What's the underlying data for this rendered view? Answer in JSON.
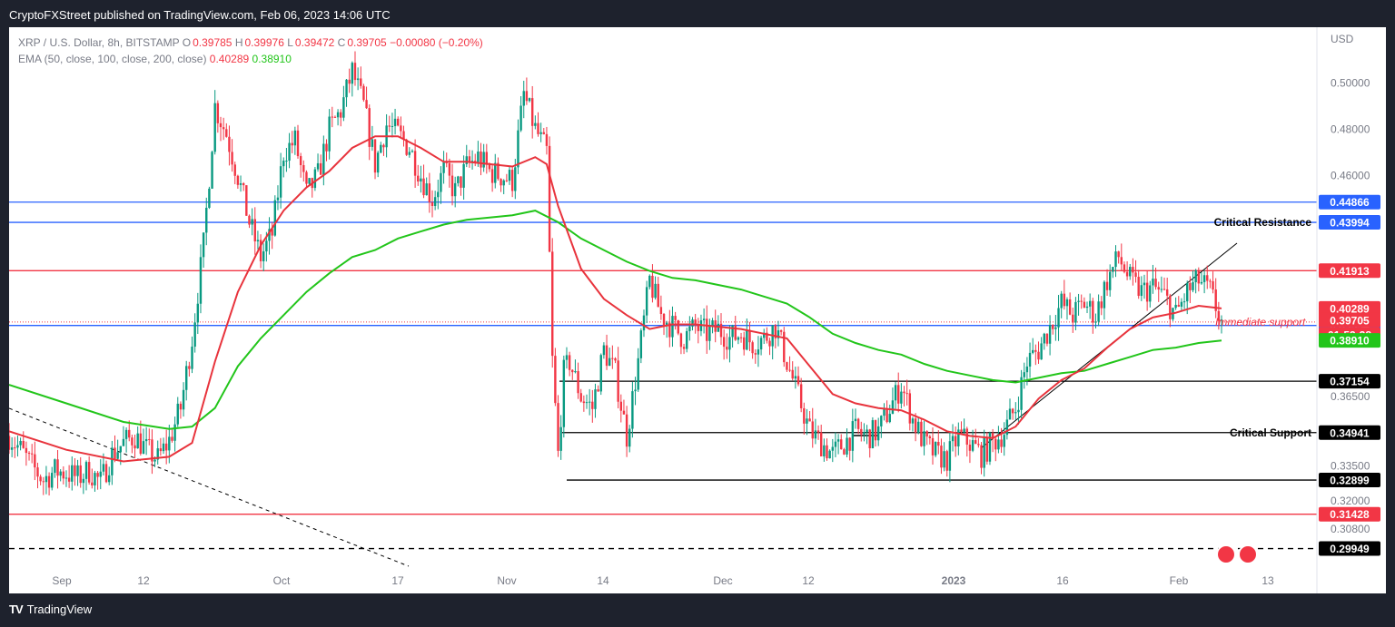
{
  "header": {
    "published": "CryptoFXStreet published on TradingView.com, Feb 06, 2023 14:06 UTC"
  },
  "footer": {
    "brand": "TradingView",
    "logo": "TV"
  },
  "legend": {
    "symbol": "XRP / U.S. Dollar, 8h, BITSTAMP",
    "o_label": "O",
    "o_value": "0.39785",
    "h_label": "H",
    "h_value": "0.39976",
    "l_label": "L",
    "l_value": "0.39472",
    "c_label": "C",
    "c_value": "0.39705",
    "change": "−0.00080 (−0.20%)",
    "ema_label": "EMA (50, close, 100, close, 200, close)",
    "ema_fast": "0.40289",
    "ema_slow": "0.38910"
  },
  "chart_data": {
    "type": "candlestick",
    "currency": "USD",
    "ylim": [
      0.2915,
      0.522
    ],
    "y_ticks": [
      "0.50000",
      "0.48000",
      "0.46000",
      "0.36500",
      "0.33500",
      "0.32000",
      "0.30800"
    ],
    "x_ticks": [
      "Sep",
      "12",
      "Oct",
      "17",
      "Nov",
      "14",
      "Dec",
      "12",
      "2023",
      "16",
      "Feb",
      "13"
    ],
    "horizontal_levels": [
      {
        "price": 0.44866,
        "label": "0.44866",
        "color": "#2962ff",
        "style": "solid",
        "annotation": ""
      },
      {
        "price": 0.43994,
        "label": "0.43994",
        "color": "#2962ff",
        "style": "solid",
        "annotation": "Critical Resistance"
      },
      {
        "price": 0.41913,
        "label": "0.41913",
        "color": "#f23645",
        "style": "solid",
        "annotation": ""
      },
      {
        "price": 0.39554,
        "label": "0.39554",
        "color": "#2962ff",
        "style": "solid",
        "annotation": ""
      },
      {
        "price": 0.37154,
        "label": "0.37154",
        "color": "#000000",
        "style": "solid",
        "annotation": ""
      },
      {
        "price": 0.34941,
        "label": "0.34941",
        "color": "#000000",
        "style": "solid",
        "annotation": "Critical Support"
      },
      {
        "price": 0.32899,
        "label": "0.32899",
        "color": "#000000",
        "style": "solid",
        "annotation": ""
      },
      {
        "price": 0.31428,
        "label": "0.31428",
        "color": "#f23645",
        "style": "solid",
        "annotation": ""
      },
      {
        "price": 0.29949,
        "label": "0.29949",
        "color": "#000000",
        "style": "dashed",
        "annotation": ""
      }
    ],
    "price_tags": [
      {
        "label": "0.40289",
        "price": 0.40289,
        "color": "#f23645"
      },
      {
        "label": "0.39705",
        "price": 0.39705,
        "color": "#f23645"
      },
      {
        "label": "01:53:28",
        "price": 0.39705,
        "color": "#f23645"
      },
      {
        "label": "0.38910",
        "price": 0.3891,
        "color": "#22c51a"
      }
    ],
    "annotations": [
      {
        "text": "Immediate support",
        "color": "#f23645"
      }
    ],
    "close_series": [
      [
        0,
        0.348
      ],
      [
        4,
        0.342
      ],
      [
        8,
        0.335
      ],
      [
        12,
        0.329
      ],
      [
        16,
        0.333
      ],
      [
        20,
        0.332
      ],
      [
        24,
        0.33
      ],
      [
        28,
        0.333
      ],
      [
        32,
        0.328
      ],
      [
        36,
        0.34
      ],
      [
        40,
        0.345
      ],
      [
        44,
        0.348
      ],
      [
        48,
        0.342
      ],
      [
        52,
        0.338
      ],
      [
        56,
        0.346
      ],
      [
        60,
        0.36
      ],
      [
        64,
        0.39
      ],
      [
        68,
        0.43
      ],
      [
        72,
        0.49
      ],
      [
        76,
        0.478
      ],
      [
        80,
        0.46
      ],
      [
        84,
        0.44
      ],
      [
        88,
        0.425
      ],
      [
        92,
        0.435
      ],
      [
        96,
        0.47
      ],
      [
        100,
        0.475
      ],
      [
        104,
        0.452
      ],
      [
        108,
        0.46
      ],
      [
        112,
        0.48
      ],
      [
        116,
        0.488
      ],
      [
        120,
        0.505
      ],
      [
        124,
        0.49
      ],
      [
        128,
        0.465
      ],
      [
        132,
        0.482
      ],
      [
        136,
        0.478
      ],
      [
        140,
        0.472
      ],
      [
        144,
        0.46
      ],
      [
        148,
        0.45
      ],
      [
        152,
        0.462
      ],
      [
        156,
        0.453
      ],
      [
        160,
        0.464
      ],
      [
        164,
        0.468
      ],
      [
        168,
        0.462
      ],
      [
        172,
        0.46
      ],
      [
        176,
        0.458
      ],
      [
        180,
        0.495
      ],
      [
        184,
        0.48
      ],
      [
        188,
        0.47
      ],
      [
        190,
        0.38
      ],
      [
        192,
        0.34
      ],
      [
        194,
        0.375
      ],
      [
        196,
        0.38
      ],
      [
        200,
        0.365
      ],
      [
        204,
        0.36
      ],
      [
        208,
        0.385
      ],
      [
        212,
        0.375
      ],
      [
        216,
        0.348
      ],
      [
        220,
        0.38
      ],
      [
        224,
        0.415
      ],
      [
        228,
        0.4
      ],
      [
        232,
        0.395
      ],
      [
        236,
        0.39
      ],
      [
        240,
        0.395
      ],
      [
        244,
        0.392
      ],
      [
        248,
        0.394
      ],
      [
        252,
        0.39
      ],
      [
        256,
        0.392
      ],
      [
        260,
        0.388
      ],
      [
        264,
        0.39
      ],
      [
        268,
        0.395
      ],
      [
        272,
        0.38
      ],
      [
        276,
        0.365
      ],
      [
        280,
        0.35
      ],
      [
        284,
        0.345
      ],
      [
        288,
        0.34
      ],
      [
        292,
        0.345
      ],
      [
        296,
        0.35
      ],
      [
        300,
        0.348
      ],
      [
        304,
        0.35
      ],
      [
        308,
        0.36
      ],
      [
        312,
        0.37
      ],
      [
        316,
        0.355
      ],
      [
        320,
        0.345
      ],
      [
        324,
        0.34
      ],
      [
        328,
        0.338
      ],
      [
        332,
        0.348
      ],
      [
        336,
        0.345
      ],
      [
        340,
        0.34
      ],
      [
        344,
        0.345
      ],
      [
        348,
        0.35
      ],
      [
        352,
        0.36
      ],
      [
        356,
        0.38
      ],
      [
        360,
        0.385
      ],
      [
        364,
        0.395
      ],
      [
        368,
        0.405
      ],
      [
        372,
        0.4
      ],
      [
        376,
        0.405
      ],
      [
        380,
        0.4
      ],
      [
        384,
        0.415
      ],
      [
        388,
        0.425
      ],
      [
        392,
        0.415
      ],
      [
        396,
        0.41
      ],
      [
        400,
        0.412
      ],
      [
        404,
        0.408
      ],
      [
        408,
        0.4
      ],
      [
        412,
        0.41
      ],
      [
        416,
        0.415
      ],
      [
        420,
        0.41
      ],
      [
        424,
        0.397
      ]
    ],
    "ema_fast_series": [
      [
        0,
        0.35
      ],
      [
        20,
        0.342
      ],
      [
        40,
        0.337
      ],
      [
        56,
        0.339
      ],
      [
        64,
        0.345
      ],
      [
        72,
        0.38
      ],
      [
        80,
        0.41
      ],
      [
        88,
        0.43
      ],
      [
        96,
        0.445
      ],
      [
        104,
        0.455
      ],
      [
        112,
        0.462
      ],
      [
        120,
        0.472
      ],
      [
        128,
        0.477
      ],
      [
        136,
        0.477
      ],
      [
        144,
        0.472
      ],
      [
        152,
        0.466
      ],
      [
        160,
        0.466
      ],
      [
        168,
        0.465
      ],
      [
        176,
        0.464
      ],
      [
        184,
        0.468
      ],
      [
        188,
        0.465
      ],
      [
        192,
        0.447
      ],
      [
        200,
        0.42
      ],
      [
        208,
        0.407
      ],
      [
        216,
        0.4
      ],
      [
        224,
        0.394
      ],
      [
        232,
        0.396
      ],
      [
        240,
        0.396
      ],
      [
        248,
        0.395
      ],
      [
        256,
        0.394
      ],
      [
        264,
        0.392
      ],
      [
        272,
        0.39
      ],
      [
        280,
        0.378
      ],
      [
        288,
        0.366
      ],
      [
        296,
        0.362
      ],
      [
        304,
        0.36
      ],
      [
        312,
        0.359
      ],
      [
        320,
        0.355
      ],
      [
        328,
        0.35
      ],
      [
        336,
        0.348
      ],
      [
        344,
        0.347
      ],
      [
        352,
        0.352
      ],
      [
        360,
        0.364
      ],
      [
        368,
        0.372
      ],
      [
        376,
        0.377
      ],
      [
        384,
        0.386
      ],
      [
        392,
        0.394
      ],
      [
        400,
        0.399
      ],
      [
        408,
        0.401
      ],
      [
        416,
        0.404
      ],
      [
        424,
        0.4029
      ]
    ],
    "ema_slow_series": [
      [
        0,
        0.37
      ],
      [
        20,
        0.362
      ],
      [
        40,
        0.354
      ],
      [
        56,
        0.351
      ],
      [
        64,
        0.352
      ],
      [
        72,
        0.36
      ],
      [
        80,
        0.378
      ],
      [
        88,
        0.39
      ],
      [
        96,
        0.4
      ],
      [
        104,
        0.41
      ],
      [
        112,
        0.418
      ],
      [
        120,
        0.425
      ],
      [
        128,
        0.428
      ],
      [
        136,
        0.433
      ],
      [
        144,
        0.436
      ],
      [
        152,
        0.439
      ],
      [
        160,
        0.441
      ],
      [
        168,
        0.442
      ],
      [
        176,
        0.443
      ],
      [
        184,
        0.445
      ],
      [
        192,
        0.44
      ],
      [
        200,
        0.433
      ],
      [
        208,
        0.428
      ],
      [
        216,
        0.423
      ],
      [
        224,
        0.419
      ],
      [
        232,
        0.416
      ],
      [
        240,
        0.415
      ],
      [
        248,
        0.413
      ],
      [
        256,
        0.411
      ],
      [
        264,
        0.408
      ],
      [
        272,
        0.405
      ],
      [
        280,
        0.399
      ],
      [
        288,
        0.392
      ],
      [
        296,
        0.388
      ],
      [
        304,
        0.385
      ],
      [
        312,
        0.383
      ],
      [
        320,
        0.379
      ],
      [
        328,
        0.376
      ],
      [
        336,
        0.374
      ],
      [
        344,
        0.372
      ],
      [
        352,
        0.371
      ],
      [
        360,
        0.373
      ],
      [
        368,
        0.375
      ],
      [
        376,
        0.376
      ],
      [
        384,
        0.379
      ],
      [
        392,
        0.382
      ],
      [
        400,
        0.385
      ],
      [
        408,
        0.386
      ],
      [
        416,
        0.388
      ],
      [
        424,
        0.3891
      ]
    ]
  }
}
